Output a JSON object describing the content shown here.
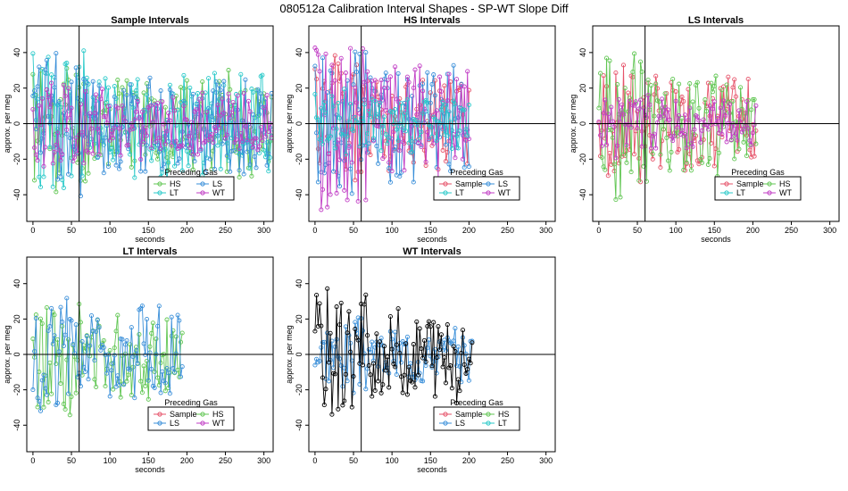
{
  "title": "080512a   Calibration Interval Shapes - SP-WT Slope Diff",
  "colors": {
    "Sample": "#e6536a",
    "HS": "#61c653",
    "LS": "#3a8fd9",
    "LT": "#29c9c9",
    "WT": "#c13ec5",
    "WTself": "#000000"
  },
  "chart_data": [
    {
      "type": "line",
      "title": "Sample Intervals",
      "xlabel": "seconds",
      "ylabel": "approx. per meg",
      "xlim": [
        -8,
        312
      ],
      "ylim": [
        -55,
        55
      ],
      "xticks": [
        0,
        50,
        100,
        150,
        200,
        250,
        300
      ],
      "yticks": [
        -40,
        -20,
        0,
        20,
        40
      ],
      "vline": 60,
      "hline": 0,
      "legend_title": "Preceding Gas",
      "legend": [
        "HS",
        "LT",
        "LS",
        "WT"
      ],
      "series": [
        {
          "name": "HS",
          "x_end": 310,
          "amp": 32,
          "seed": 11
        },
        {
          "name": "LT",
          "x_end": 310,
          "amp": 36,
          "seed": 23
        },
        {
          "name": "LS",
          "x_end": 310,
          "amp": 34,
          "seed": 37
        },
        {
          "name": "WT",
          "x_end": 310,
          "amp": 20,
          "seed": 49
        }
      ]
    },
    {
      "type": "line",
      "title": "HS Intervals",
      "xlabel": "seconds",
      "ylabel": "approx. per meg",
      "xlim": [
        -8,
        312
      ],
      "ylim": [
        -55,
        55
      ],
      "xticks": [
        0,
        50,
        100,
        150,
        200,
        250,
        300
      ],
      "yticks": [
        -40,
        -20,
        0,
        20,
        40
      ],
      "vline": 60,
      "hline": 0,
      "legend_title": "Preceding Gas",
      "legend": [
        "Sample",
        "LT",
        "LS",
        "WT"
      ],
      "series": [
        {
          "name": "Sample",
          "x_end": 200,
          "amp": 34,
          "seed": 5
        },
        {
          "name": "LS",
          "x_end": 200,
          "amp": 38,
          "seed": 17
        },
        {
          "name": "WT",
          "x_end": 200,
          "amp": 40,
          "seed": 29
        },
        {
          "name": "LT",
          "x_end": 200,
          "amp": 18,
          "seed": 41
        }
      ]
    },
    {
      "type": "line",
      "title": "LS Intervals",
      "xlabel": "seconds",
      "ylabel": "approx. per meg",
      "xlim": [
        -8,
        312
      ],
      "ylim": [
        -55,
        55
      ],
      "xticks": [
        0,
        50,
        100,
        150,
        200,
        250,
        300
      ],
      "yticks": [
        -40,
        -20,
        0,
        20,
        40
      ],
      "vline": 60,
      "hline": 0,
      "legend_title": "Preceding Gas",
      "legend": [
        "Sample",
        "LT",
        "HS",
        "WT"
      ],
      "series": [
        {
          "name": "Sample",
          "x_end": 205,
          "amp": 30,
          "seed": 7
        },
        {
          "name": "HS",
          "x_end": 205,
          "amp": 34,
          "seed": 19
        },
        {
          "name": "WT",
          "x_end": 205,
          "amp": 14,
          "seed": 31
        }
      ]
    },
    {
      "type": "line",
      "title": "LT Intervals",
      "xlabel": "seconds",
      "ylabel": "approx. per meg",
      "xlim": [
        -8,
        312
      ],
      "ylim": [
        -55,
        55
      ],
      "xticks": [
        0,
        50,
        100,
        150,
        200,
        250,
        300
      ],
      "yticks": [
        -40,
        -20,
        0,
        20,
        40
      ],
      "vline": 60,
      "hline": 0,
      "legend_title": "Preceding Gas",
      "legend": [
        "Sample",
        "LS",
        "HS",
        "WT"
      ],
      "series": [
        {
          "name": "HS",
          "x_end": 195,
          "amp": 28,
          "seed": 13
        },
        {
          "name": "LS",
          "x_end": 195,
          "amp": 30,
          "seed": 27
        }
      ]
    },
    {
      "type": "line",
      "title": "WT Intervals",
      "xlabel": "seconds",
      "ylabel": "approx. per meg",
      "xlim": [
        -8,
        312
      ],
      "ylim": [
        -55,
        55
      ],
      "xticks": [
        0,
        50,
        100,
        150,
        200,
        250,
        300
      ],
      "yticks": [
        -40,
        -20,
        0,
        20,
        40
      ],
      "vline": 60,
      "hline": 0,
      "legend_title": "Preceding Gas",
      "legend": [
        "Sample",
        "LS",
        "HS",
        "LT"
      ],
      "series": [
        {
          "name": "LS",
          "x_end": 205,
          "amp": 16,
          "seed": 3
        },
        {
          "name": "WTself",
          "x_end": 205,
          "amp": 30,
          "seed": 43
        }
      ]
    }
  ]
}
